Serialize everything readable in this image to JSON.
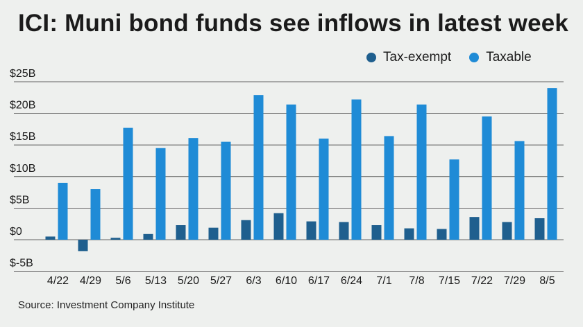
{
  "header": {
    "title": "ICI: Muni bond funds see inflows in latest week"
  },
  "legend": {
    "items": [
      {
        "label": "Tax-exempt",
        "color": "#1f5f8e"
      },
      {
        "label": "Taxable",
        "color": "#1f8bd6"
      }
    ]
  },
  "footer": {
    "source": "Source: Investment Company Institute"
  },
  "chart_data": {
    "type": "bar",
    "title": "ICI: Muni bond funds see inflows in latest week",
    "xlabel": "",
    "ylabel": "",
    "ylim": [
      -5,
      25
    ],
    "yticks": [
      25,
      20,
      15,
      10,
      5,
      0,
      -5
    ],
    "ytick_labels": [
      "$25B",
      "$20B",
      "$15B",
      "$10B",
      "$5B",
      "$0",
      "$-5B"
    ],
    "grid": true,
    "legend_position": "top-right",
    "categories": [
      "4/22",
      "4/29",
      "5/6",
      "5/13",
      "5/20",
      "5/27",
      "6/3",
      "6/10",
      "6/17",
      "6/24",
      "7/1",
      "7/8",
      "7/15",
      "7/22",
      "7/29",
      "8/5"
    ],
    "series": [
      {
        "name": "Tax-exempt",
        "color": "#1f5f8e",
        "values": [
          0.5,
          -1.8,
          0.3,
          0.9,
          2.3,
          1.9,
          3.1,
          4.2,
          2.9,
          2.8,
          2.3,
          1.8,
          1.7,
          3.6,
          2.8,
          3.4
        ]
      },
      {
        "name": "Taxable",
        "color": "#1f8bd6",
        "values": [
          9.0,
          8.0,
          17.7,
          14.5,
          16.1,
          15.5,
          22.9,
          21.4,
          16.0,
          22.2,
          16.4,
          21.4,
          12.7,
          19.5,
          15.6,
          24.0
        ]
      }
    ]
  }
}
